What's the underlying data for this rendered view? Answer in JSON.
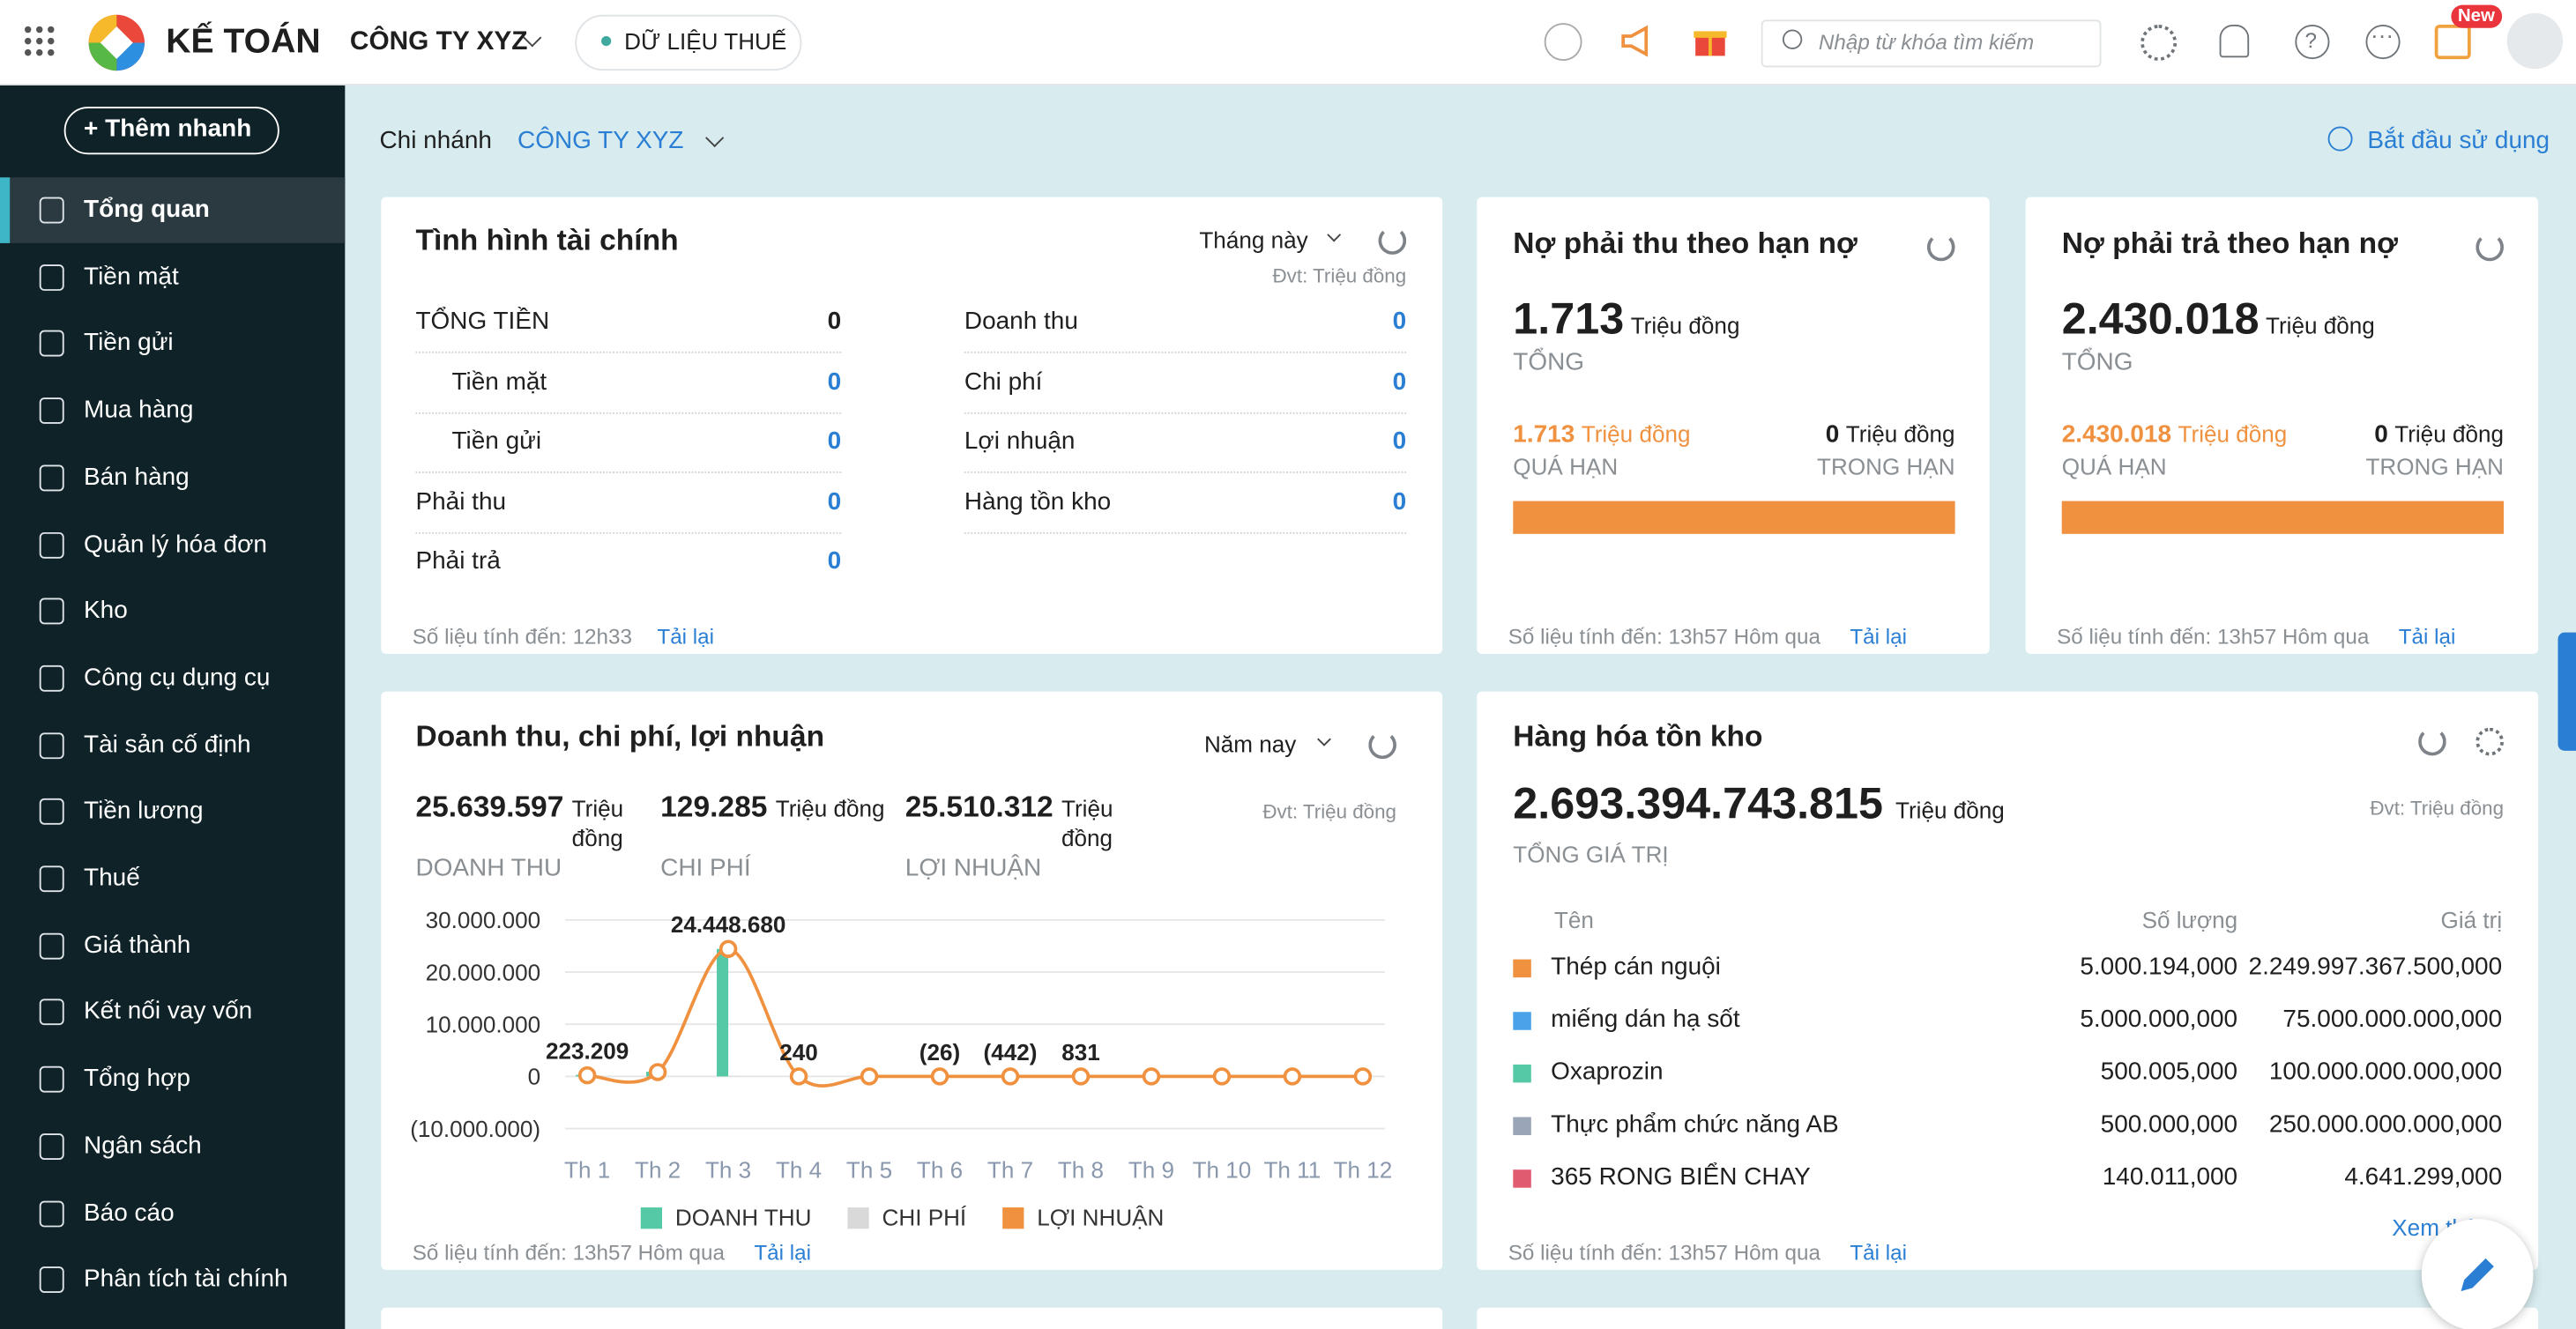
{
  "header": {
    "brand": "KẾ TOÁN",
    "company": "CÔNG TY XYZ",
    "tax_data": "DỮ LIỆU THUẾ",
    "search_placeholder": "Nhập từ khóa tìm kiếm",
    "badge": "New"
  },
  "sidebar": {
    "quick_add": "Thêm nhanh",
    "items": [
      {
        "label": "Tổng quan",
        "active": true
      },
      {
        "label": "Tiền mặt"
      },
      {
        "label": "Tiền gửi"
      },
      {
        "label": "Mua hàng"
      },
      {
        "label": "Bán hàng"
      },
      {
        "label": "Quản lý hóa đơn"
      },
      {
        "label": "Kho"
      },
      {
        "label": "Công cụ dụng cụ"
      },
      {
        "label": "Tài sản cố định"
      },
      {
        "label": "Tiền lương"
      },
      {
        "label": "Thuế"
      },
      {
        "label": "Giá thành"
      },
      {
        "label": "Kết nối vay vốn"
      },
      {
        "label": "Tổng hợp"
      },
      {
        "label": "Ngân sách"
      },
      {
        "label": "Báo cáo"
      },
      {
        "label": "Phân tích tài chính"
      }
    ]
  },
  "filter": {
    "label": "Chi nhánh",
    "value": "CÔNG TY XYZ",
    "start": "Bắt đầu sử dụng"
  },
  "finance": {
    "title": "Tình hình tài chính",
    "period": "Tháng này",
    "unit": "Đvt: Triệu đồng",
    "left": [
      {
        "label": "TỔNG TIỀN",
        "value": 0,
        "children": [
          {
            "label": "Tiền mặt",
            "value": 0
          },
          {
            "label": "Tiền gửi",
            "value": 0
          }
        ]
      },
      {
        "label": "Phải thu",
        "value": 0
      },
      {
        "label": "Phải trả",
        "value": 0
      }
    ],
    "right": [
      {
        "label": "Doanh thu",
        "value": 0
      },
      {
        "label": "Chi phí",
        "value": 0
      },
      {
        "label": "Lợi nhuận",
        "value": 0
      },
      {
        "label": "Hàng tồn kho",
        "value": 0
      }
    ],
    "footer": "Số liệu tính đến: 12h33",
    "reload": "Tải lại"
  },
  "receivable": {
    "title": "Nợ phải thu theo hạn nợ",
    "total": "1.713",
    "unit": "Triệu đồng",
    "total_label": "TỔNG",
    "overdue": "1.713",
    "overdue_label": "QUÁ HẠN",
    "in_term": 0,
    "in_term_label": "TRONG HẠN",
    "footer": "Số liệu tính đến: 13h57 Hôm qua",
    "reload": "Tải lại"
  },
  "payable": {
    "title": "Nợ phải trả theo hạn nợ",
    "total": "2.430.018",
    "unit": "Triệu đồng",
    "total_label": "TỔNG",
    "overdue": "2.430.018",
    "overdue_label": "QUÁ HẠN",
    "in_term": 0,
    "in_term_label": "TRONG HẠN",
    "footer": "Số liệu tính đến: 13h57 Hôm qua",
    "reload": "Tải lại"
  },
  "chart_data": {
    "type": "combo",
    "title": "Doanh thu, chi phí, lợi nhuận",
    "period": "Năm nay",
    "unit": "Đvt: Triệu đồng",
    "summaries": [
      {
        "value": "25.639.597",
        "unit": "Triệu đồng",
        "label": "DOANH THU"
      },
      {
        "value": "129.285",
        "unit": "Triệu đồng",
        "label": "CHI PHÍ"
      },
      {
        "value": "25.510.312",
        "unit": "Triệu đồng",
        "label": "LỢI NHUẬN"
      }
    ],
    "categories": [
      "Th 1",
      "Th 2",
      "Th 3",
      "Th 4",
      "Th 5",
      "Th 6",
      "Th 7",
      "Th 8",
      "Th 9",
      "Th 10",
      "Th 11",
      "Th 12"
    ],
    "series": [
      {
        "name": "DOANH THU",
        "kind": "bar",
        "color": "#55c9a6",
        "values": [
          300000,
          900000,
          24439597,
          0,
          0,
          0,
          0,
          0,
          0,
          0,
          0,
          0
        ]
      },
      {
        "name": "CHI PHÍ",
        "kind": "bar",
        "color": "#d9d9d9",
        "values": [
          0,
          0,
          129285,
          0,
          0,
          0,
          0,
          0,
          0,
          0,
          0,
          0
        ]
      },
      {
        "name": "LỢI NHUẬN",
        "kind": "line",
        "color": "#f0913f",
        "values": [
          223209,
          837820,
          24448680,
          240,
          0,
          -26,
          -442,
          831,
          0,
          0,
          0,
          0
        ],
        "value_labels": [
          "223.209",
          null,
          "24.448.680",
          "240",
          null,
          "(26)",
          "(442)",
          "831",
          null,
          null,
          null,
          null
        ]
      }
    ],
    "ylim": [
      -10000000,
      30000000
    ],
    "yticks": [
      {
        "value": 30000000,
        "label": "30.000.000"
      },
      {
        "value": 20000000,
        "label": "20.000.000"
      },
      {
        "value": 10000000,
        "label": "10.000.000"
      },
      0,
      {
        "value": -10000000,
        "label": "(10.000.000)"
      }
    ],
    "grid": true,
    "footer": "Số liệu tính đến: 13h57 Hôm qua",
    "reload": "Tải lại"
  },
  "inventory": {
    "title": "Hàng hóa tồn kho",
    "total": "2.693.394.743.815",
    "unit": "Triệu đồng",
    "unit_note": "Đvt: Triệu đồng",
    "total_label": "TỔNG GIÁ TRỊ",
    "columns": [
      "Tên",
      "Số lượng",
      "Giá trị"
    ],
    "rows": [
      {
        "color": "#f0913f",
        "cells": [
          "Thép cán nguội",
          "5.000.194,000",
          "2.249.997.367.500,000"
        ]
      },
      {
        "color": "#4aa3e8",
        "cells": [
          "miếng dán hạ sốt",
          "5.000.000,000",
          "75.000.000.000,000"
        ]
      },
      {
        "color": "#55c9a6",
        "cells": [
          "Oxaprozin",
          "500.005,000",
          "100.000.000.000,000"
        ]
      },
      {
        "color": "#9aa5b8",
        "cells": [
          "Thực phẩm chức năng AB",
          "500.000,000",
          "250.000.000.000,000"
        ]
      },
      {
        "color": "#e05a70",
        "cells": [
          "365 RONG BIỂN CHAY",
          "140.011,000",
          "4.641.299,000"
        ]
      }
    ],
    "more": "Xem thêm",
    "footer": "Số liệu tính đến: 13h57 Hôm qua",
    "reload": "Tải lại"
  }
}
